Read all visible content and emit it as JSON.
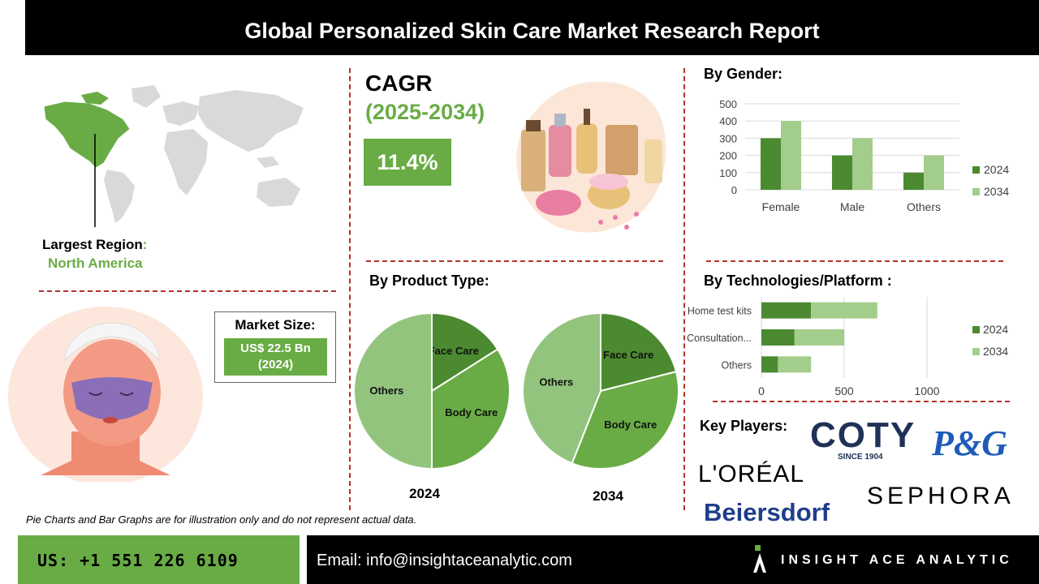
{
  "header": {
    "title": "Global Personalized Skin Care Market Research Report"
  },
  "region": {
    "label": "Largest Region",
    "colon": ":",
    "value": "North America"
  },
  "cagr": {
    "label": "CAGR",
    "period": "(2025-2034)",
    "value": "11.4%"
  },
  "market_size": {
    "label": "Market Size:",
    "value": "US$ 22.5 Bn",
    "year": "(2024)"
  },
  "gender_section": {
    "heading": "By Gender:"
  },
  "product_section": {
    "heading": "By Product Type:"
  },
  "tech_section": {
    "heading": "By Technologies/Platform :"
  },
  "key_players": {
    "heading": "Key Players:",
    "coty": "COTY",
    "coty_since": "SINCE 1904",
    "pg": "P&G",
    "loreal": "L'ORÉAL",
    "sephora": "SEPHORA",
    "beiersdorf": "Beiersdorf"
  },
  "disclaimer": "Pie Charts and Bar Graphs are for illustration only and do not represent actual data.",
  "footer": {
    "phone": "US: +1 551 226 6109",
    "email": "Email: info@insightaceanalytic.com",
    "brand": "INSIGHT ACE ANALYTIC"
  },
  "colors": {
    "dark_green": "#4b8a30",
    "mid_green": "#69ac45",
    "light_green": "#a3cd8b",
    "pie_light": "#93c47d",
    "accent_red": "#b5302b"
  },
  "chart_data": [
    {
      "type": "bar",
      "categories": [
        "Female",
        "Male",
        "Others"
      ],
      "series": [
        {
          "name": "2024",
          "values": [
            300,
            200,
            100
          ]
        },
        {
          "name": "2034",
          "values": [
            400,
            300,
            200
          ]
        }
      ],
      "yticks": [
        0,
        100,
        200,
        300,
        400,
        500
      ],
      "ylim": [
        0,
        500
      ],
      "legend": "right"
    },
    {
      "type": "pie",
      "year_label": "2024",
      "slices": [
        {
          "label": "Face Care",
          "value": 16
        },
        {
          "label": "Body Care",
          "value": 34
        },
        {
          "label": "Others",
          "value": 50
        }
      ]
    },
    {
      "type": "pie",
      "year_label": "2034",
      "slices": [
        {
          "label": "Face Care",
          "value": 21
        },
        {
          "label": "Body Care",
          "value": 35
        },
        {
          "label": "Others",
          "value": 44
        }
      ]
    },
    {
      "type": "bar",
      "orientation": "horizontal",
      "stacked": true,
      "categories": [
        "Home test kits",
        "Consultation...",
        "Others"
      ],
      "series": [
        {
          "name": "2024",
          "values": [
            300,
            200,
            100
          ]
        },
        {
          "name": "2034",
          "values": [
            400,
            300,
            200
          ]
        }
      ],
      "xticks": [
        0,
        500,
        1000
      ],
      "xlim": [
        0,
        1000
      ],
      "legend": "right"
    }
  ]
}
